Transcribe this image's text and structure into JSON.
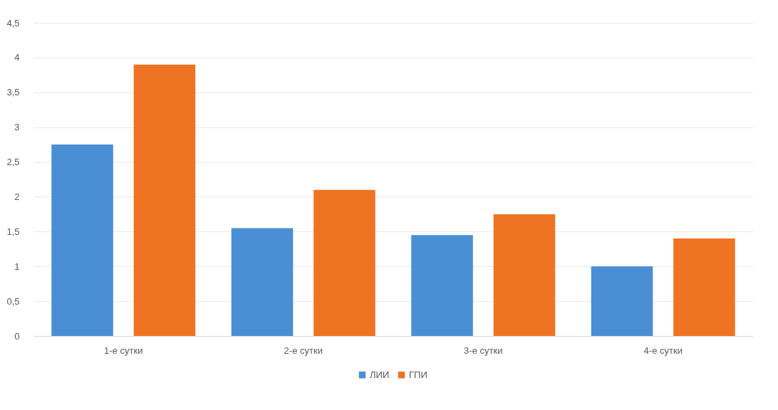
{
  "chart_data": {
    "type": "bar",
    "categories": [
      "1-е сутки",
      "2-е сутки",
      "3-е сутки",
      "4-е сутки"
    ],
    "series": [
      {
        "name": "ЛИИ",
        "color": "#4a8fd4",
        "values": [
          2.75,
          1.55,
          1.45,
          1.0
        ]
      },
      {
        "name": "ГПИ",
        "color": "#ee7424",
        "values": [
          3.9,
          2.1,
          1.75,
          1.4
        ]
      }
    ],
    "ylim": [
      0,
      4.5
    ],
    "yticks": [
      0,
      {
        "value": 0.5,
        "label": "0,5"
      },
      1,
      {
        "value": 1.5,
        "label": "1,5"
      },
      2,
      {
        "value": 2.5,
        "label": "2,5"
      },
      3,
      {
        "value": 3.5,
        "label": "3,5"
      },
      4,
      {
        "value": 4.5,
        "label": "4,5"
      }
    ],
    "grid": "y",
    "legend": "bottom"
  }
}
